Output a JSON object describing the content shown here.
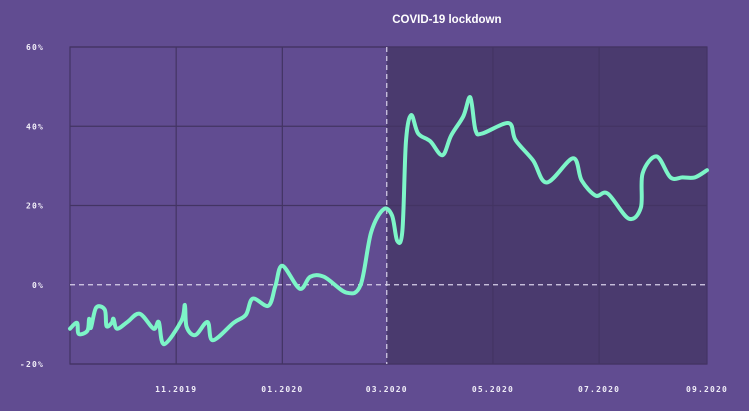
{
  "chart_data": {
    "type": "line",
    "title": "",
    "xlabel": "",
    "ylabel": "",
    "ylim": [
      -20,
      60
    ],
    "xlim": [
      "2019-09-01",
      "2020-09-01"
    ],
    "grid": true,
    "y_ticks": [
      {
        "value": 60,
        "label": "60%"
      },
      {
        "value": 40,
        "label": "40%"
      },
      {
        "value": 20,
        "label": "20%"
      },
      {
        "value": 0,
        "label": "0%"
      },
      {
        "value": -20,
        "label": "-20%"
      }
    ],
    "x_ticks": [
      {
        "date": "2019-11-01",
        "label": "11.2019"
      },
      {
        "date": "2020-01-01",
        "label": "01.2020"
      },
      {
        "date": "2020-03-01",
        "label": "03.2020"
      },
      {
        "date": "2020-05-01",
        "label": "05.2020"
      },
      {
        "date": "2020-07-01",
        "label": "07.2020"
      },
      {
        "date": "2020-09-01",
        "label": "09.2020"
      }
    ],
    "annotation": {
      "label": "COVID-19 lockdown",
      "start": "2020-03-01",
      "end": "2020-09-01"
    },
    "colors": {
      "background": "#614c91",
      "shaded": "#4a3a6e",
      "line": "#7df5c8",
      "grid": "#433463",
      "reference": "#d8d0ea"
    },
    "series": [
      {
        "points": [
          [
            "2019-09-01",
            -11.1
          ],
          [
            "2019-09-05",
            -9.6
          ],
          [
            "2019-09-06",
            -12.4
          ],
          [
            "2019-09-11",
            -11.6
          ],
          [
            "2019-09-12",
            -8.6
          ],
          [
            "2019-09-13",
            -10.9
          ],
          [
            "2019-09-16",
            -5.8
          ],
          [
            "2019-09-21",
            -6.3
          ],
          [
            "2019-09-22",
            -10.4
          ],
          [
            "2019-09-25",
            -9.6
          ],
          [
            "2019-09-26",
            -8.6
          ],
          [
            "2019-09-28",
            -11.1
          ],
          [
            "2019-10-04",
            -9.4
          ],
          [
            "2019-10-11",
            -7.3
          ],
          [
            "2019-10-19",
            -11.1
          ],
          [
            "2019-10-22",
            -9.4
          ],
          [
            "2019-10-25",
            -15.0
          ],
          [
            "2019-11-04",
            -9.1
          ],
          [
            "2019-11-06",
            -5.1
          ],
          [
            "2019-11-07",
            -10.6
          ],
          [
            "2019-11-12",
            -12.7
          ],
          [
            "2019-11-19",
            -9.4
          ],
          [
            "2019-11-22",
            -14.0
          ],
          [
            "2019-12-04",
            -9.6
          ],
          [
            "2019-12-11",
            -7.6
          ],
          [
            "2019-12-15",
            -3.5
          ],
          [
            "2019-12-24",
            -5.3
          ],
          [
            "2019-12-28",
            -0.3
          ],
          [
            "2020-01-01",
            4.8
          ],
          [
            "2020-01-11",
            -1.0
          ],
          [
            "2020-01-17",
            2.0
          ],
          [
            "2020-01-25",
            2.0
          ],
          [
            "2020-02-07",
            -2.0
          ],
          [
            "2020-02-15",
            0.0
          ],
          [
            "2020-02-21",
            13.2
          ],
          [
            "2020-02-28",
            19.0
          ],
          [
            "2020-03-04",
            17.5
          ],
          [
            "2020-03-07",
            11.1
          ],
          [
            "2020-03-10",
            13.7
          ],
          [
            "2020-03-12",
            36.0
          ],
          [
            "2020-03-15",
            42.8
          ],
          [
            "2020-03-19",
            38.2
          ],
          [
            "2020-03-26",
            36.2
          ],
          [
            "2020-04-02",
            32.7
          ],
          [
            "2020-04-07",
            37.7
          ],
          [
            "2020-04-14",
            42.5
          ],
          [
            "2020-04-18",
            47.3
          ],
          [
            "2020-04-21",
            39.0
          ],
          [
            "2020-04-25",
            38.2
          ],
          [
            "2020-05-10",
            40.8
          ],
          [
            "2020-05-14",
            36.5
          ],
          [
            "2020-05-24",
            31.4
          ],
          [
            "2020-06-01",
            25.8
          ],
          [
            "2020-06-16",
            31.9
          ],
          [
            "2020-06-21",
            26.3
          ],
          [
            "2020-06-29",
            22.5
          ],
          [
            "2020-07-06",
            23.0
          ],
          [
            "2020-07-18",
            16.7
          ],
          [
            "2020-07-25",
            19.5
          ],
          [
            "2020-07-26",
            28.1
          ],
          [
            "2020-08-03",
            32.4
          ],
          [
            "2020-08-11",
            27.1
          ],
          [
            "2020-08-18",
            27.1
          ],
          [
            "2020-08-25",
            27.1
          ],
          [
            "2020-09-01",
            28.9
          ]
        ]
      }
    ]
  }
}
